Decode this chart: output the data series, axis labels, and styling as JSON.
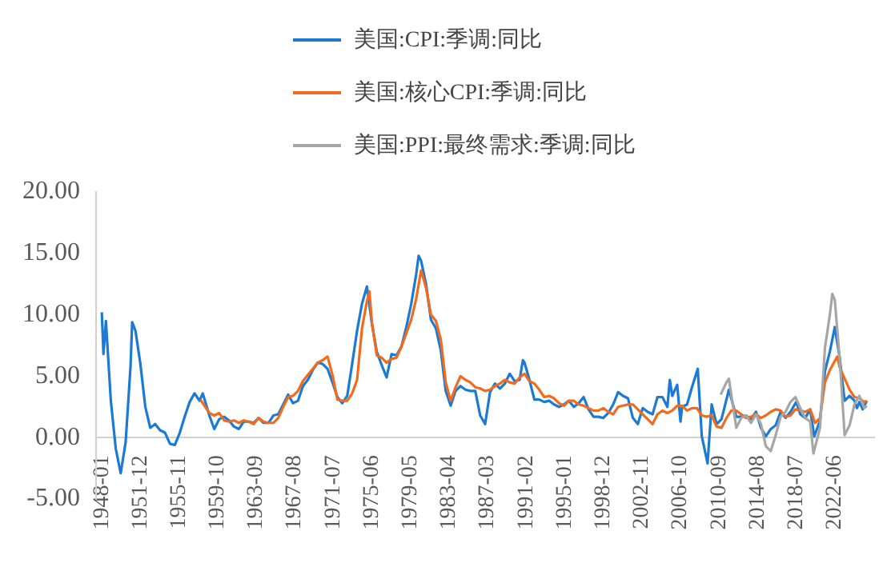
{
  "chart_data": {
    "type": "line",
    "legend": "top",
    "marker": "none",
    "line_style": "solid",
    "grid": false,
    "xlim": [
      "1947-06",
      "2026-06"
    ],
    "xticks": [
      "1948-01",
      "1951-12",
      "1955-11",
      "1959-10",
      "1963-09",
      "1967-08",
      "1971-07",
      "1975-06",
      "1979-05",
      "1983-04",
      "1987-03",
      "1991-02",
      "1995-01",
      "1998-12",
      "2002-11",
      "2006-10",
      "2010-09",
      "2014-08",
      "2018-07",
      "2022-06"
    ],
    "ylim": [
      -5,
      20
    ],
    "yticks": [
      {
        "value": -5,
        "label": "-5.00"
      },
      {
        "value": 0,
        "label": "0.00"
      },
      {
        "value": 5,
        "label": "5.00"
      },
      {
        "value": 10,
        "label": "10.00"
      },
      {
        "value": 15,
        "label": "15.00"
      },
      {
        "value": 20,
        "label": "20.00"
      }
    ],
    "series": [
      {
        "name": "美国:CPI:季调:同比",
        "color": "#1a7ad4",
        "x": [
          "1948-01",
          "1948-03",
          "1948-06",
          "1948-12",
          "1949-06",
          "1949-12",
          "1950-06",
          "1950-12",
          "1951-02",
          "1951-06",
          "1951-12",
          "1952-06",
          "1952-12",
          "1953-06",
          "1953-12",
          "1954-06",
          "1954-12",
          "1955-06",
          "1955-12",
          "1956-06",
          "1956-12",
          "1957-06",
          "1957-12",
          "1958-04",
          "1958-12",
          "1959-06",
          "1959-12",
          "1960-06",
          "1960-12",
          "1961-06",
          "1961-12",
          "1962-06",
          "1962-12",
          "1963-06",
          "1963-12",
          "1964-06",
          "1964-12",
          "1965-06",
          "1965-12",
          "1966-06",
          "1966-12",
          "1967-06",
          "1967-12",
          "1968-06",
          "1968-12",
          "1969-06",
          "1969-12",
          "1970-06",
          "1970-12",
          "1971-06",
          "1971-12",
          "1972-06",
          "1972-12",
          "1973-06",
          "1973-12",
          "1974-06",
          "1974-12",
          "1975-06",
          "1975-12",
          "1976-06",
          "1976-12",
          "1977-06",
          "1977-12",
          "1978-06",
          "1978-12",
          "1979-06",
          "1979-12",
          "1980-03",
          "1980-06",
          "1980-12",
          "1981-06",
          "1981-12",
          "1982-06",
          "1982-12",
          "1983-06",
          "1983-12",
          "1984-06",
          "1984-12",
          "1985-06",
          "1985-12",
          "1986-06",
          "1986-12",
          "1987-06",
          "1987-12",
          "1988-06",
          "1988-12",
          "1989-06",
          "1989-12",
          "1990-06",
          "1990-10",
          "1990-12",
          "1991-06",
          "1991-12",
          "1992-06",
          "1992-12",
          "1993-06",
          "1993-12",
          "1994-06",
          "1994-12",
          "1995-06",
          "1995-12",
          "1996-06",
          "1996-12",
          "1997-06",
          "1997-12",
          "1998-06",
          "1998-12",
          "1999-06",
          "1999-12",
          "2000-06",
          "2000-12",
          "2001-06",
          "2001-12",
          "2002-06",
          "2002-12",
          "2003-06",
          "2003-12",
          "2004-06",
          "2004-12",
          "2005-06",
          "2005-09",
          "2005-12",
          "2006-06",
          "2006-10",
          "2006-12",
          "2007-06",
          "2007-12",
          "2008-07",
          "2008-12",
          "2009-07",
          "2009-12",
          "2010-06",
          "2010-12",
          "2011-09",
          "2012-06",
          "2012-12",
          "2013-06",
          "2013-12",
          "2014-06",
          "2014-12",
          "2015-06",
          "2015-12",
          "2016-06",
          "2016-12",
          "2017-06",
          "2017-12",
          "2018-07",
          "2018-12",
          "2019-06",
          "2019-12",
          "2020-05",
          "2020-12",
          "2021-06",
          "2021-12",
          "2022-06",
          "2022-12",
          "2023-06",
          "2023-12",
          "2024-06",
          "2024-09",
          "2024-12",
          "2025-04",
          "2025-09"
        ],
        "values": [
          10.2,
          6.8,
          9.5,
          3.0,
          -0.9,
          -2.9,
          -0.4,
          5.8,
          9.4,
          8.7,
          6.0,
          2.5,
          0.8,
          1.1,
          0.6,
          0.4,
          -0.5,
          -0.6,
          0.4,
          1.7,
          2.9,
          3.6,
          3.0,
          3.6,
          1.8,
          0.7,
          1.5,
          1.7,
          1.4,
          0.9,
          0.7,
          1.3,
          1.3,
          1.2,
          1.6,
          1.2,
          1.2,
          1.8,
          1.9,
          2.7,
          3.5,
          2.8,
          3.0,
          4.2,
          4.7,
          5.5,
          6.1,
          6.0,
          5.6,
          4.5,
          3.3,
          2.8,
          3.4,
          6.0,
          8.7,
          10.9,
          12.3,
          9.3,
          7.0,
          5.9,
          4.9,
          6.8,
          6.7,
          7.4,
          9.0,
          10.9,
          13.3,
          14.8,
          14.4,
          12.5,
          9.6,
          8.9,
          7.1,
          3.8,
          2.6,
          3.8,
          4.2,
          3.9,
          3.8,
          3.8,
          1.8,
          1.1,
          3.7,
          4.4,
          4.0,
          4.4,
          5.2,
          4.6,
          4.7,
          6.3,
          6.1,
          4.7,
          3.1,
          3.1,
          2.9,
          3.0,
          2.7,
          2.5,
          2.7,
          3.0,
          2.5,
          2.8,
          3.3,
          2.3,
          1.7,
          1.7,
          1.6,
          2.0,
          2.7,
          3.7,
          3.4,
          3.2,
          1.6,
          1.1,
          2.4,
          2.1,
          1.9,
          3.3,
          3.3,
          2.5,
          4.7,
          3.4,
          4.3,
          1.3,
          2.5,
          2.7,
          4.1,
          5.6,
          0.1,
          -2.1,
          2.7,
          1.1,
          1.5,
          3.9,
          1.7,
          1.7,
          1.8,
          1.5,
          2.1,
          0.8,
          0.1,
          0.7,
          1.0,
          2.1,
          1.6,
          2.1,
          2.9,
          1.9,
          1.6,
          2.3,
          0.1,
          1.4,
          5.4,
          7.0,
          9.0,
          6.5,
          3.0,
          3.4,
          3.0,
          2.4,
          2.9,
          2.3,
          3.0
        ]
      },
      {
        "name": "美国:核心CPI:季调:同比",
        "color": "#f26b1d",
        "x": [
          "1958-01",
          "1958-12",
          "1959-06",
          "1959-12",
          "1960-06",
          "1960-12",
          "1961-06",
          "1961-12",
          "1962-06",
          "1962-12",
          "1963-06",
          "1963-12",
          "1964-06",
          "1964-12",
          "1965-06",
          "1965-12",
          "1966-06",
          "1966-12",
          "1967-06",
          "1967-12",
          "1968-06",
          "1968-12",
          "1969-06",
          "1969-12",
          "1970-06",
          "1970-12",
          "1971-06",
          "1971-12",
          "1972-06",
          "1972-12",
          "1973-06",
          "1973-12",
          "1974-06",
          "1974-12",
          "1975-03",
          "1975-06",
          "1975-12",
          "1976-06",
          "1976-12",
          "1977-06",
          "1977-12",
          "1978-06",
          "1978-12",
          "1979-06",
          "1979-12",
          "1980-06",
          "1980-12",
          "1981-06",
          "1981-12",
          "1982-06",
          "1982-12",
          "1983-06",
          "1983-12",
          "1984-06",
          "1984-12",
          "1985-06",
          "1985-12",
          "1986-06",
          "1986-12",
          "1987-06",
          "1987-12",
          "1988-06",
          "1988-12",
          "1989-06",
          "1989-12",
          "1990-06",
          "1990-12",
          "1991-06",
          "1991-12",
          "1992-06",
          "1992-12",
          "1993-06",
          "1993-12",
          "1994-06",
          "1994-12",
          "1995-06",
          "1995-12",
          "1996-06",
          "1996-12",
          "1997-06",
          "1997-12",
          "1998-06",
          "1998-12",
          "1999-06",
          "1999-12",
          "2000-06",
          "2000-12",
          "2001-06",
          "2001-12",
          "2002-06",
          "2002-12",
          "2003-06",
          "2003-12",
          "2004-06",
          "2004-12",
          "2005-06",
          "2005-12",
          "2006-06",
          "2006-12",
          "2007-06",
          "2007-12",
          "2008-06",
          "2008-12",
          "2009-06",
          "2009-12",
          "2010-06",
          "2010-12",
          "2011-06",
          "2011-12",
          "2012-06",
          "2012-12",
          "2013-06",
          "2013-12",
          "2014-06",
          "2014-12",
          "2015-06",
          "2015-12",
          "2016-06",
          "2016-12",
          "2017-06",
          "2017-12",
          "2018-06",
          "2018-12",
          "2019-06",
          "2019-12",
          "2020-06",
          "2020-12",
          "2021-06",
          "2021-12",
          "2022-09",
          "2022-12",
          "2023-06",
          "2023-12",
          "2024-06",
          "2024-12",
          "2025-06",
          "2025-09"
        ],
        "values": [
          3.1,
          2.0,
          1.8,
          2.0,
          1.4,
          1.3,
          1.4,
          1.2,
          1.4,
          1.3,
          1.1,
          1.6,
          1.3,
          1.2,
          1.2,
          1.6,
          2.5,
          3.3,
          3.4,
          3.8,
          4.6,
          5.1,
          5.6,
          6.1,
          6.3,
          6.6,
          5.1,
          3.1,
          3.0,
          3.0,
          3.6,
          4.7,
          8.9,
          11.1,
          11.9,
          9.4,
          6.7,
          6.5,
          6.1,
          6.4,
          6.5,
          7.4,
          8.5,
          9.6,
          11.3,
          13.6,
          12.2,
          10.0,
          9.5,
          8.0,
          4.5,
          3.0,
          4.1,
          5.0,
          4.7,
          4.5,
          4.1,
          4.0,
          3.8,
          3.9,
          4.2,
          4.4,
          4.7,
          4.5,
          4.4,
          4.9,
          5.2,
          4.6,
          4.4,
          3.9,
          3.3,
          3.4,
          3.2,
          2.8,
          2.6,
          3.0,
          3.0,
          2.7,
          2.6,
          2.4,
          2.2,
          2.2,
          2.4,
          2.1,
          1.9,
          2.5,
          2.6,
          2.7,
          2.7,
          2.3,
          1.9,
          1.5,
          1.1,
          1.9,
          2.2,
          2.0,
          2.2,
          2.6,
          2.6,
          2.2,
          2.4,
          2.4,
          1.8,
          1.7,
          1.8,
          0.9,
          0.8,
          1.6,
          2.2,
          2.2,
          1.9,
          1.6,
          1.7,
          1.9,
          1.6,
          1.8,
          2.1,
          2.3,
          2.2,
          1.7,
          1.8,
          2.3,
          2.2,
          2.1,
          2.3,
          1.2,
          1.6,
          4.5,
          5.5,
          6.6,
          5.7,
          4.8,
          3.9,
          3.3,
          3.2,
          2.9,
          3.0
        ]
      },
      {
        "name": "美国:PPI:最终需求:季调:同比",
        "color": "#a6a6a6",
        "x": [
          "2010-11",
          "2011-06",
          "2011-09",
          "2012-06",
          "2012-12",
          "2013-06",
          "2013-12",
          "2014-06",
          "2014-12",
          "2015-06",
          "2015-12",
          "2016-06",
          "2016-12",
          "2017-06",
          "2017-12",
          "2018-06",
          "2018-12",
          "2019-06",
          "2019-12",
          "2020-04",
          "2020-12",
          "2021-06",
          "2021-12",
          "2022-03",
          "2022-06",
          "2022-12",
          "2023-06",
          "2023-12",
          "2024-06",
          "2024-12",
          "2025-06",
          "2025-09"
        ],
        "values": [
          3.5,
          4.5,
          4.8,
          0.8,
          1.6,
          1.8,
          1.2,
          1.9,
          1.1,
          -0.7,
          -1.1,
          0.2,
          1.7,
          2.1,
          2.9,
          3.3,
          2.4,
          1.6,
          1.3,
          -1.3,
          0.8,
          7.3,
          10.0,
          11.7,
          11.2,
          6.4,
          0.2,
          1.0,
          2.7,
          3.4,
          2.4,
          2.6
        ]
      }
    ]
  }
}
